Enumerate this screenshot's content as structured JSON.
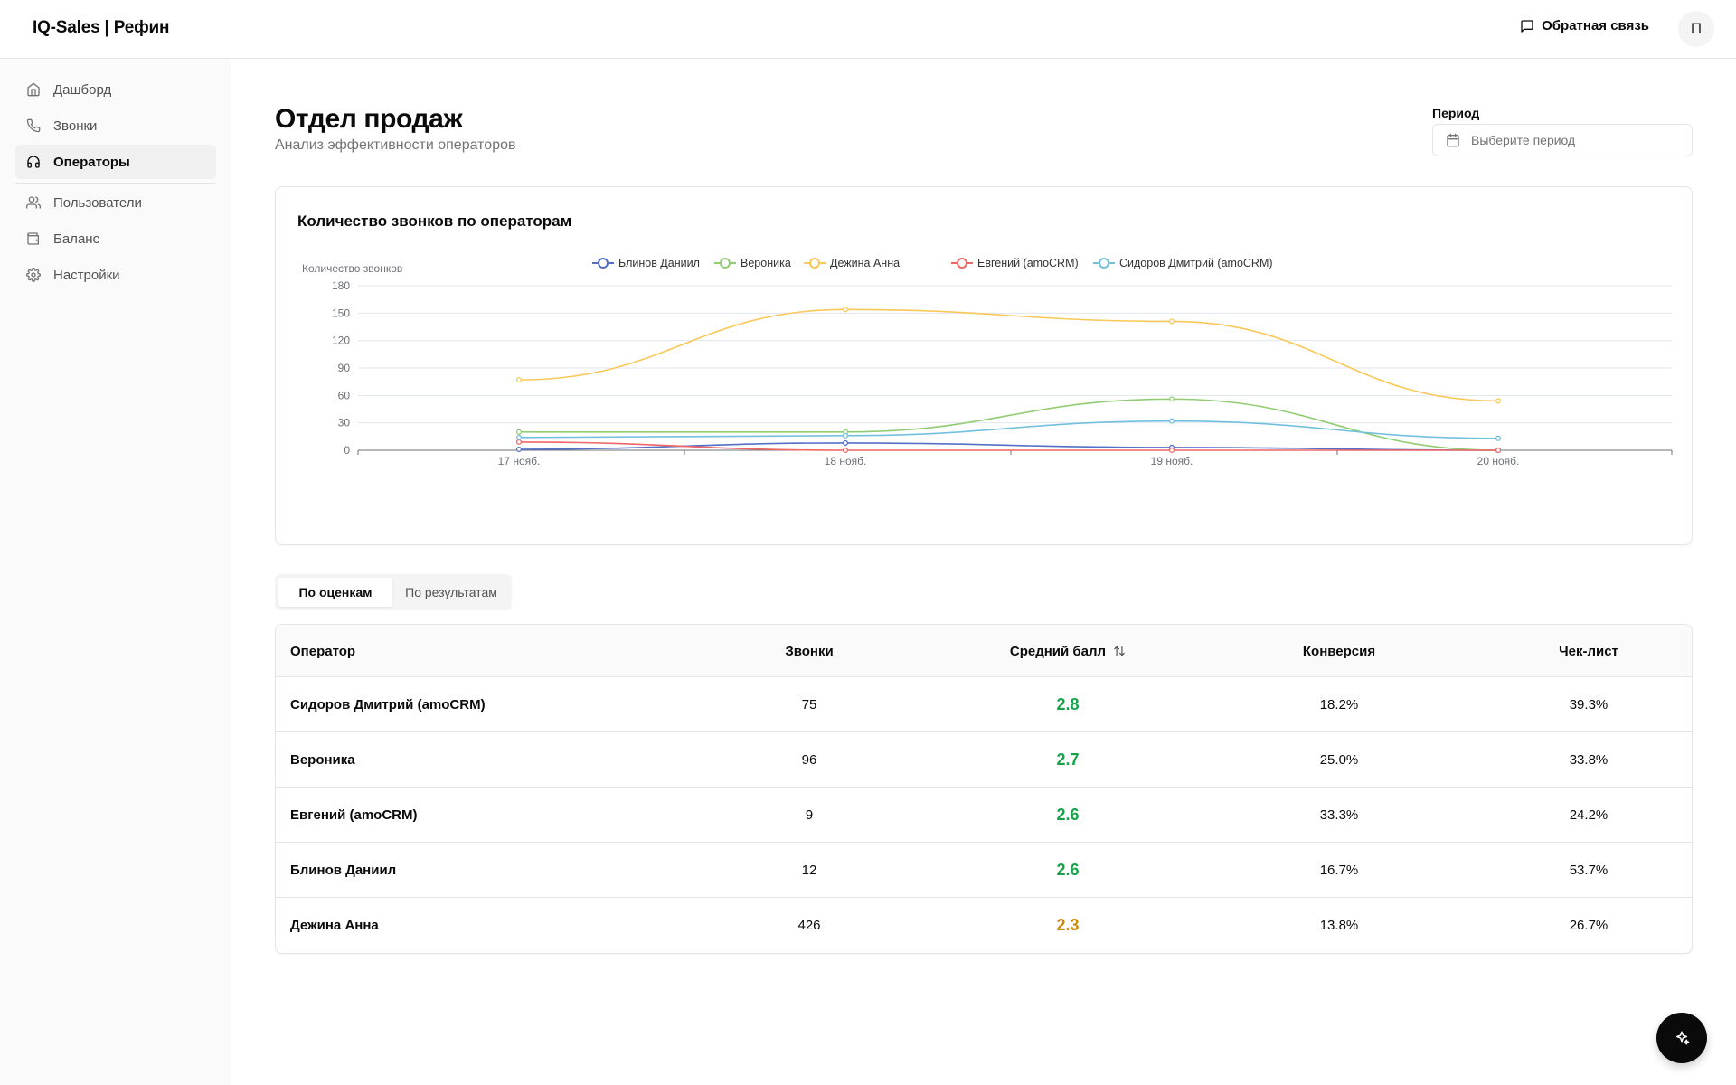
{
  "app": {
    "title": "IQ-Sales | Рефин"
  },
  "header": {
    "feedback_label": "Обратная связь",
    "avatar_initial": "П"
  },
  "sidebar": {
    "items": [
      {
        "label": "Дашборд",
        "icon": "home-icon"
      },
      {
        "label": "Звонки",
        "icon": "phone-icon"
      },
      {
        "label": "Операторы",
        "icon": "headphones-icon",
        "active": true
      },
      {
        "label": "Пользователи",
        "icon": "users-icon"
      },
      {
        "label": "Баланс",
        "icon": "wallet-icon"
      },
      {
        "label": "Настройки",
        "icon": "gear-icon"
      }
    ]
  },
  "page": {
    "title": "Отдел продаж",
    "subtitle": "Анализ эффективности операторов"
  },
  "period": {
    "label": "Период",
    "placeholder": "Выберите период"
  },
  "chart_data": {
    "type": "line",
    "title": "Количество звонков по операторам",
    "ylabel": "Количество звонков",
    "xlabel": "",
    "ylim": [
      0,
      180
    ],
    "yticks": [
      0,
      30,
      60,
      90,
      120,
      150,
      180
    ],
    "categories": [
      "17 нояб.",
      "18 нояб.",
      "19 нояб.",
      "20 нояб."
    ],
    "grid": true,
    "legend_position": "top-center",
    "series": [
      {
        "name": "Блинов Даниил",
        "color": "#5470c6",
        "values": [
          1,
          8,
          3,
          0
        ]
      },
      {
        "name": "Вероника",
        "color": "#91cc75",
        "values": [
          20,
          20,
          56,
          0
        ]
      },
      {
        "name": "Дежина Анна",
        "color": "#fac858",
        "values": [
          77,
          154,
          141,
          54
        ]
      },
      {
        "name": "Евгений (amoCRM)",
        "color": "#ee6666",
        "values": [
          9,
          0,
          0,
          0
        ]
      },
      {
        "name": "Сидоров Дмитрий (amoCRM)",
        "color": "#73c0de",
        "values": [
          14,
          16,
          32,
          13
        ]
      }
    ]
  },
  "tabs": [
    {
      "label": "По оценкам",
      "active": true
    },
    {
      "label": "По результатам",
      "active": false
    }
  ],
  "table": {
    "columns": [
      "Оператор",
      "Звонки",
      "Средний балл",
      "Конверсия",
      "Чек-лист"
    ],
    "rows": [
      {
        "name": "Сидоров Дмитрий (amoCRM)",
        "calls": "75",
        "score": "2.8",
        "score_color": "#16a34a",
        "conversion": "18.2%",
        "checklist": "39.3%"
      },
      {
        "name": "Вероника",
        "calls": "96",
        "score": "2.7",
        "score_color": "#16a34a",
        "conversion": "25.0%",
        "checklist": "33.8%"
      },
      {
        "name": "Евгений (amoCRM)",
        "calls": "9",
        "score": "2.6",
        "score_color": "#16a34a",
        "conversion": "33.3%",
        "checklist": "24.2%"
      },
      {
        "name": "Блинов Даниил",
        "calls": "12",
        "score": "2.6",
        "score_color": "#16a34a",
        "conversion": "16.7%",
        "checklist": "53.7%"
      },
      {
        "name": "Дежина Анна",
        "calls": "426",
        "score": "2.3",
        "score_color": "#ca8a04",
        "conversion": "13.8%",
        "checklist": "26.7%"
      }
    ]
  },
  "fab": {
    "icon": "sparkles-icon"
  }
}
